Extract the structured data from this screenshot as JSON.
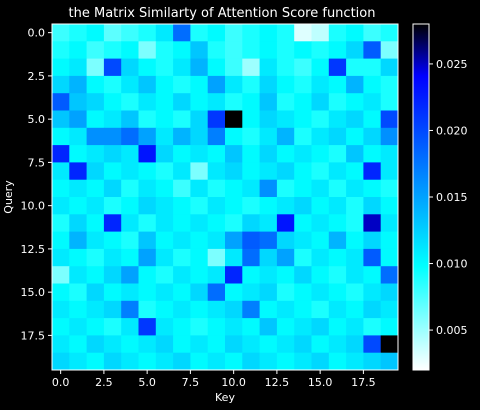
{
  "chart_data": {
    "type": "heatmap",
    "title": "the Matrix Similarty of Attention Score function",
    "xlabel": "Key",
    "ylabel": "Query",
    "rows": 20,
    "cols": 20,
    "x_range": [
      -0.5,
      19.5
    ],
    "y_range": [
      -0.5,
      19.5
    ],
    "x_ticks": [
      0,
      2.5,
      5,
      7.5,
      10,
      12.5,
      15,
      17.5
    ],
    "x_tick_labels": [
      "0.0",
      "2.5",
      "5.0",
      "7.5",
      "10.0",
      "12.5",
      "15.0",
      "17.5"
    ],
    "y_ticks": [
      0,
      2.5,
      5,
      7.5,
      10,
      12.5,
      15,
      17.5
    ],
    "y_tick_labels": [
      "0.0",
      "2.5",
      "5.0",
      "7.5",
      "10.0",
      "12.5",
      "15.0",
      "17.5"
    ],
    "colormap": {
      "low": "#ffffff",
      "mid": "#00ffff",
      "high": "#0000ff",
      "max": "#000000"
    },
    "colorbar": {
      "min": 0.002,
      "max": 0.028,
      "ticks": [
        0.005,
        0.01,
        0.015,
        0.02,
        0.025
      ],
      "tick_labels": [
        "0.005",
        "0.010",
        "0.015",
        "0.020",
        "0.025"
      ]
    },
    "grid": false,
    "values": [
      [
        0.008,
        0.009,
        0.01,
        0.007,
        0.008,
        0.009,
        0.011,
        0.018,
        0.009,
        0.01,
        0.008,
        0.009,
        0.01,
        0.009,
        0.003,
        0.004,
        0.009,
        0.01,
        0.008,
        0.009
      ],
      [
        0.009,
        0.01,
        0.008,
        0.009,
        0.01,
        0.006,
        0.009,
        0.01,
        0.013,
        0.009,
        0.008,
        0.009,
        0.01,
        0.009,
        0.01,
        0.009,
        0.01,
        0.012,
        0.019,
        0.006
      ],
      [
        0.01,
        0.011,
        0.006,
        0.02,
        0.012,
        0.01,
        0.009,
        0.011,
        0.014,
        0.01,
        0.008,
        0.005,
        0.011,
        0.009,
        0.008,
        0.01,
        0.021,
        0.009,
        0.009,
        0.012
      ],
      [
        0.012,
        0.014,
        0.01,
        0.009,
        0.011,
        0.013,
        0.01,
        0.009,
        0.01,
        0.015,
        0.011,
        0.009,
        0.012,
        0.01,
        0.009,
        0.011,
        0.01,
        0.014,
        0.01,
        0.009
      ],
      [
        0.019,
        0.013,
        0.012,
        0.01,
        0.009,
        0.011,
        0.01,
        0.012,
        0.01,
        0.011,
        0.009,
        0.01,
        0.013,
        0.009,
        0.01,
        0.012,
        0.009,
        0.01,
        0.011,
        0.009
      ],
      [
        0.013,
        0.015,
        0.01,
        0.011,
        0.013,
        0.009,
        0.01,
        0.009,
        0.012,
        0.021,
        0.028,
        0.01,
        0.012,
        0.011,
        0.01,
        0.009,
        0.011,
        0.012,
        0.01,
        0.02
      ],
      [
        0.01,
        0.011,
        0.016,
        0.016,
        0.018,
        0.015,
        0.011,
        0.014,
        0.012,
        0.017,
        0.01,
        0.009,
        0.011,
        0.014,
        0.009,
        0.011,
        0.012,
        0.01,
        0.012,
        0.016
      ],
      [
        0.022,
        0.01,
        0.011,
        0.012,
        0.011,
        0.023,
        0.012,
        0.01,
        0.011,
        0.01,
        0.013,
        0.01,
        0.012,
        0.01,
        0.011,
        0.01,
        0.009,
        0.013,
        0.01,
        0.011
      ],
      [
        0.011,
        0.022,
        0.012,
        0.01,
        0.011,
        0.01,
        0.009,
        0.011,
        0.006,
        0.011,
        0.012,
        0.01,
        0.011,
        0.012,
        0.01,
        0.009,
        0.011,
        0.01,
        0.022,
        0.011
      ],
      [
        0.01,
        0.011,
        0.01,
        0.012,
        0.009,
        0.011,
        0.01,
        0.008,
        0.011,
        0.009,
        0.01,
        0.011,
        0.016,
        0.009,
        0.01,
        0.011,
        0.009,
        0.011,
        0.01,
        0.009
      ],
      [
        0.011,
        0.01,
        0.011,
        0.009,
        0.01,
        0.012,
        0.011,
        0.01,
        0.009,
        0.011,
        0.01,
        0.009,
        0.01,
        0.011,
        0.012,
        0.01,
        0.011,
        0.009,
        0.012,
        0.01
      ],
      [
        0.009,
        0.012,
        0.01,
        0.022,
        0.011,
        0.009,
        0.011,
        0.01,
        0.011,
        0.01,
        0.009,
        0.012,
        0.011,
        0.023,
        0.01,
        0.011,
        0.01,
        0.009,
        0.025,
        0.011
      ],
      [
        0.01,
        0.014,
        0.011,
        0.01,
        0.009,
        0.013,
        0.01,
        0.011,
        0.01,
        0.011,
        0.015,
        0.019,
        0.018,
        0.012,
        0.011,
        0.01,
        0.014,
        0.01,
        0.012,
        0.01
      ],
      [
        0.011,
        0.01,
        0.009,
        0.011,
        0.01,
        0.015,
        0.011,
        0.009,
        0.01,
        0.006,
        0.011,
        0.018,
        0.012,
        0.015,
        0.009,
        0.011,
        0.01,
        0.011,
        0.019,
        0.01
      ],
      [
        0.006,
        0.011,
        0.01,
        0.012,
        0.015,
        0.01,
        0.009,
        0.011,
        0.01,
        0.011,
        0.022,
        0.01,
        0.011,
        0.01,
        0.012,
        0.01,
        0.009,
        0.011,
        0.01,
        0.018
      ],
      [
        0.01,
        0.009,
        0.012,
        0.01,
        0.011,
        0.01,
        0.011,
        0.01,
        0.012,
        0.018,
        0.01,
        0.011,
        0.012,
        0.009,
        0.01,
        0.011,
        0.01,
        0.009,
        0.011,
        0.012
      ],
      [
        0.011,
        0.01,
        0.011,
        0.012,
        0.017,
        0.009,
        0.01,
        0.011,
        0.01,
        0.011,
        0.012,
        0.017,
        0.01,
        0.011,
        0.01,
        0.009,
        0.011,
        0.01,
        0.012,
        0.011
      ],
      [
        0.01,
        0.011,
        0.01,
        0.009,
        0.011,
        0.021,
        0.011,
        0.01,
        0.009,
        0.01,
        0.011,
        0.01,
        0.013,
        0.01,
        0.011,
        0.012,
        0.01,
        0.011,
        0.009,
        0.01
      ],
      [
        0.011,
        0.01,
        0.012,
        0.011,
        0.01,
        0.011,
        0.012,
        0.01,
        0.011,
        0.01,
        0.012,
        0.011,
        0.01,
        0.011,
        0.012,
        0.01,
        0.011,
        0.012,
        0.02,
        0.028
      ],
      [
        0.012,
        0.011,
        0.01,
        0.012,
        0.011,
        0.01,
        0.011,
        0.012,
        0.01,
        0.011,
        0.01,
        0.012,
        0.011,
        0.01,
        0.011,
        0.012,
        0.01,
        0.011,
        0.012,
        0.013
      ]
    ]
  }
}
